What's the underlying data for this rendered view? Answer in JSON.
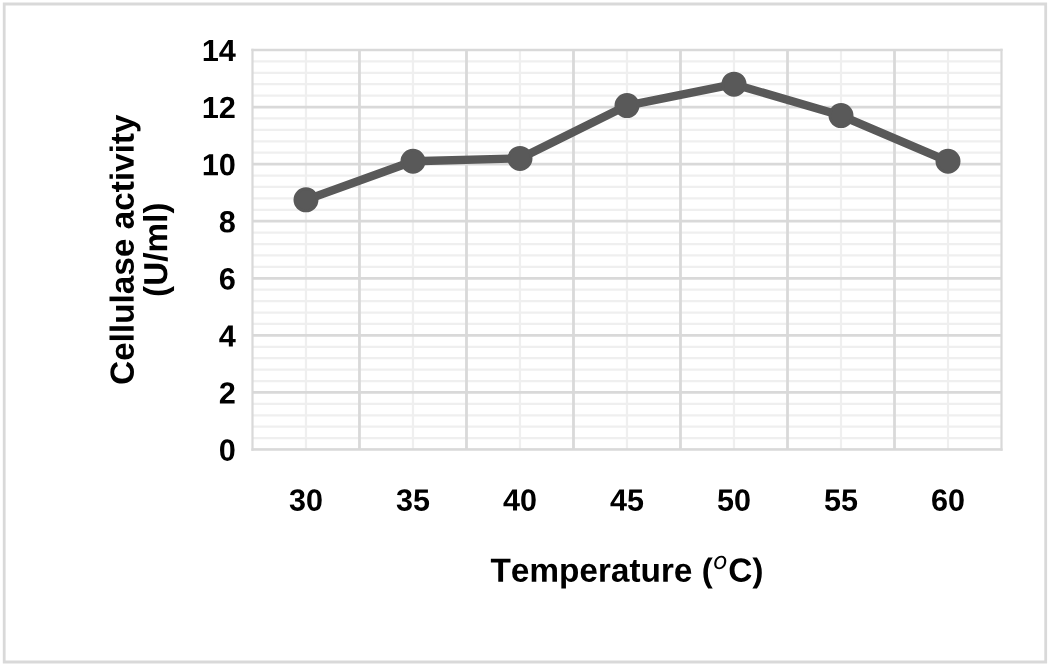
{
  "chart_data": {
    "type": "line",
    "xlabel": "Temperature ($^{o}$C)",
    "ylabel": "Cellulase activity\n(U/ml)",
    "categories": [
      "30",
      "35",
      "40",
      "45",
      "50",
      "55",
      "60"
    ],
    "series": [
      {
        "color": "#595959",
        "values": [
          8.75,
          10.1,
          10.2,
          12.05,
          12.8,
          11.7,
          10.1
        ]
      }
    ],
    "ylim": [
      0,
      14
    ],
    "yticks": [
      0,
      2,
      4,
      6,
      8,
      10,
      12,
      14
    ],
    "grid": true,
    "marker": "circle",
    "line_style": "solid"
  }
}
